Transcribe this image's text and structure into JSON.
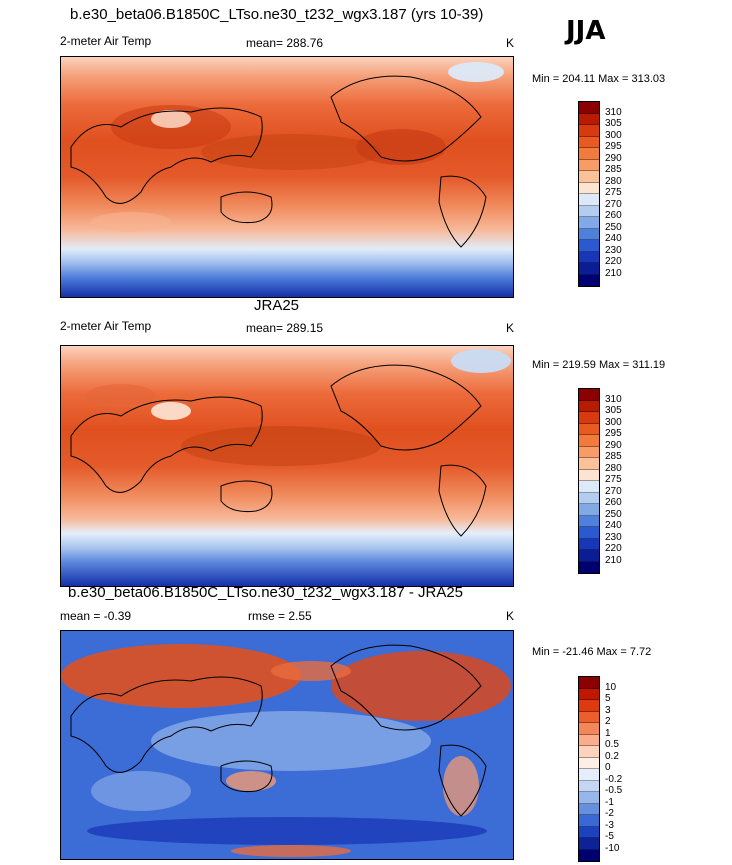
{
  "season": "JJA",
  "panels": [
    {
      "title": "b.e30_beta06.B1850C_LTso.ne30_t232_wgx3.187 (yrs 10-39)",
      "left": "2-meter Air Temp",
      "center": "mean= 288.76",
      "units": "K",
      "minmax": "Min = 204.11 Max = 313.03",
      "colorbar_labels": [
        "310",
        "305",
        "300",
        "295",
        "290",
        "285",
        "280",
        "275",
        "270",
        "260",
        "250",
        "240",
        "230",
        "220",
        "210"
      ],
      "colorbar_colors": [
        "#8b0000",
        "#b71c00",
        "#d83a10",
        "#e85a20",
        "#f17b3d",
        "#f79c66",
        "#fbc19a",
        "#fde3d2",
        "#dbe9f8",
        "#b2cdf0",
        "#80a9e6",
        "#4f81dc",
        "#2b5ad0",
        "#1836b8",
        "#0b1c94",
        "#000070"
      ]
    },
    {
      "title": "JRA25",
      "left": "2-meter Air Temp",
      "center": "mean= 289.15",
      "units": "K",
      "minmax": "Min = 219.59 Max = 311.19",
      "colorbar_labels": [
        "310",
        "305",
        "300",
        "295",
        "290",
        "285",
        "280",
        "275",
        "270",
        "260",
        "250",
        "240",
        "230",
        "220",
        "210"
      ],
      "colorbar_colors": [
        "#8b0000",
        "#b71c00",
        "#d83a10",
        "#e85a20",
        "#f17b3d",
        "#f79c66",
        "#fbc19a",
        "#fde3d2",
        "#dbe9f8",
        "#b2cdf0",
        "#80a9e6",
        "#4f81dc",
        "#2b5ad0",
        "#1836b8",
        "#0b1c94",
        "#000070"
      ]
    },
    {
      "title": "b.e30_beta06.B1850C_LTso.ne30_t232_wgx3.187 - JRA25",
      "left": "mean =  -0.39",
      "center": "rmse =   2.55",
      "units": "K",
      "minmax": "Min = -21.46 Max =   7.72",
      "colorbar_labels": [
        "10",
        "5",
        "3",
        "2",
        "1",
        "0.5",
        "0.2",
        "0",
        "-0.2",
        "-0.5",
        "-1",
        "-2",
        "-3",
        "-5",
        "-10"
      ],
      "colorbar_colors": [
        "#8b0000",
        "#c01800",
        "#dd3a12",
        "#ec5f2c",
        "#f4875a",
        "#f9ad8c",
        "#fcd2bd",
        "#fdeee6",
        "#e6eefb",
        "#c4d6f4",
        "#96b6ec",
        "#6590e0",
        "#3a68d4",
        "#1d42be",
        "#0c2296",
        "#000070"
      ]
    }
  ]
}
